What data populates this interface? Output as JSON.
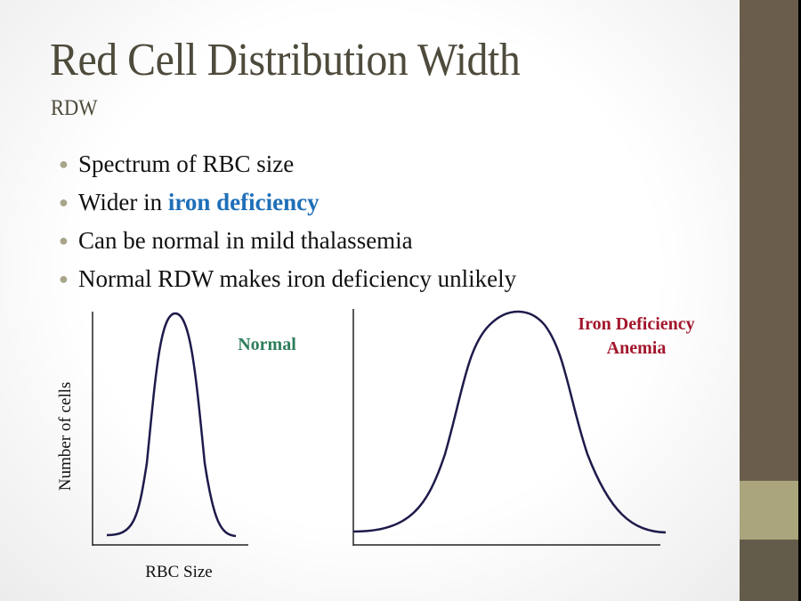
{
  "title": "Red Cell Distribution Width",
  "subtitle": "RDW",
  "bullets": [
    {
      "text": "Spectrum of RBC size"
    },
    {
      "text": "Wider in ",
      "highlight": "iron deficiency"
    },
    {
      "text": "Can be normal in mild thalassemia"
    },
    {
      "text": "Normal RDW makes iron deficiency unlikely"
    }
  ],
  "diagram": {
    "y_label": "Number of cells",
    "x_label": "RBC Size",
    "normal_label": "Normal",
    "ida_label_line1": "Iron Deficiency",
    "ida_label_line2": "Anemia"
  },
  "colors": {
    "highlight": "#1f6fb8",
    "normal": "#2e7d5b",
    "ida": "#a3162b",
    "curve": "#1e1b4b",
    "sidebar": "#6b5d4b",
    "band": "#aaa57c"
  }
}
